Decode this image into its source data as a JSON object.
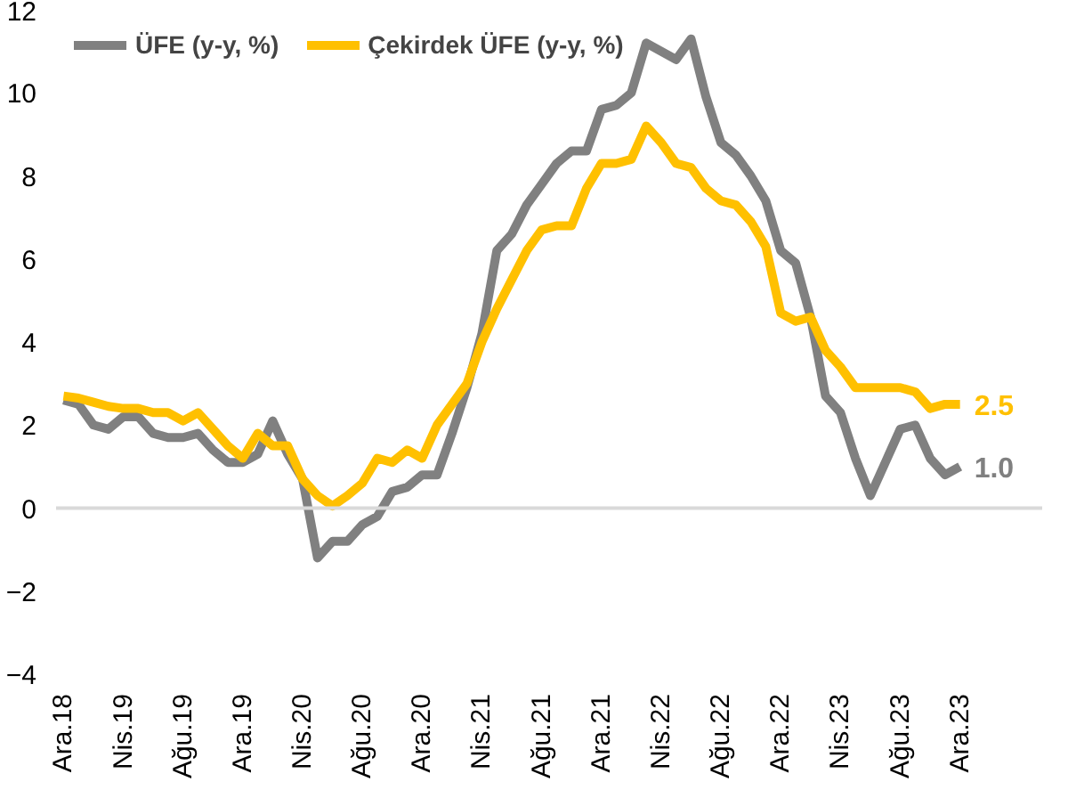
{
  "chart_data": {
    "type": "line",
    "categories": [
      "Ara.18",
      null,
      null,
      null,
      "Nis.19",
      null,
      null,
      null,
      "Ağu.19",
      null,
      null,
      null,
      "Ara.19",
      null,
      null,
      null,
      "Nis.20",
      null,
      null,
      null,
      "Ağu.20",
      null,
      null,
      null,
      "Ara.20",
      null,
      null,
      null,
      "Nis.21",
      null,
      null,
      null,
      "Ağu.21",
      null,
      null,
      null,
      "Ara.21",
      null,
      null,
      null,
      "Nis.22",
      null,
      null,
      null,
      "Ağu.22",
      null,
      null,
      null,
      "Ara.22",
      null,
      null,
      null,
      "Nis.23",
      null,
      null,
      null,
      "Ağu.23",
      null,
      null,
      null,
      "Ara.23"
    ],
    "series": [
      {
        "name": "ÜFE (y-y, %)",
        "color": "#808080",
        "values": [
          2.6,
          2.5,
          2.0,
          1.9,
          2.2,
          2.2,
          1.8,
          1.7,
          1.7,
          1.8,
          1.4,
          1.1,
          1.1,
          1.3,
          2.1,
          1.3,
          0.7,
          -1.2,
          -0.8,
          -0.8,
          -0.4,
          -0.2,
          0.4,
          0.5,
          0.8,
          0.8,
          1.8,
          2.9,
          4.2,
          6.2,
          6.6,
          7.3,
          7.8,
          8.3,
          8.6,
          8.6,
          9.6,
          9.7,
          10.0,
          11.2,
          11.0,
          10.8,
          11.3,
          9.9,
          8.8,
          8.5,
          8.0,
          7.4,
          6.2,
          5.9,
          4.6,
          2.7,
          2.3,
          1.2,
          0.3,
          1.1,
          1.9,
          2.0,
          1.2,
          0.8,
          1.0
        ],
        "value_labels": [
          null,
          null,
          null,
          null,
          null,
          null,
          null,
          null,
          null,
          null,
          null,
          null,
          null,
          null,
          null,
          null,
          null,
          null,
          null,
          null,
          null,
          null,
          null,
          null,
          null,
          null,
          null,
          null,
          null,
          null,
          null,
          null,
          null,
          null,
          null,
          null,
          null,
          null,
          null,
          null,
          null,
          null,
          null,
          null,
          null,
          null,
          null,
          null,
          null,
          null,
          null,
          null,
          null,
          null,
          null,
          null,
          null,
          null,
          null,
          null,
          "1.0"
        ]
      },
      {
        "name": "Çekirdek ÜFE (y-y, %)",
        "color": "#ffc000",
        "values": [
          2.7,
          2.65,
          2.55,
          2.45,
          2.4,
          2.4,
          2.3,
          2.3,
          2.1,
          2.3,
          1.9,
          1.5,
          1.2,
          1.8,
          1.5,
          1.5,
          0.7,
          0.3,
          0.05,
          0.3,
          0.6,
          1.2,
          1.1,
          1.4,
          1.2,
          2.0,
          2.5,
          3.0,
          4.0,
          4.8,
          5.5,
          6.2,
          6.7,
          6.8,
          6.8,
          7.7,
          8.3,
          8.3,
          8.4,
          9.2,
          8.8,
          8.3,
          8.2,
          7.7,
          7.4,
          7.3,
          6.9,
          6.3,
          4.7,
          4.5,
          4.6,
          3.8,
          3.4,
          2.9,
          2.9,
          2.9,
          2.9,
          2.8,
          2.4,
          2.5,
          2.5
        ],
        "value_labels": [
          null,
          null,
          null,
          null,
          null,
          null,
          null,
          null,
          null,
          null,
          null,
          null,
          null,
          null,
          null,
          null,
          null,
          null,
          null,
          null,
          null,
          null,
          null,
          null,
          null,
          null,
          null,
          null,
          null,
          null,
          null,
          null,
          null,
          null,
          null,
          null,
          null,
          null,
          null,
          null,
          null,
          null,
          null,
          null,
          null,
          null,
          null,
          null,
          null,
          null,
          null,
          null,
          null,
          null,
          null,
          null,
          null,
          null,
          null,
          null,
          "2.5"
        ]
      }
    ],
    "ylim": [
      -4,
      12
    ],
    "yticks": [
      -4,
      -2,
      0,
      2,
      4,
      6,
      8,
      10,
      12
    ],
    "ref_lines": [
      {
        "axis": "y",
        "value": 0,
        "color": "#d9d9d9"
      }
    ],
    "legend": "top",
    "grid": false,
    "line_style": "solid"
  }
}
